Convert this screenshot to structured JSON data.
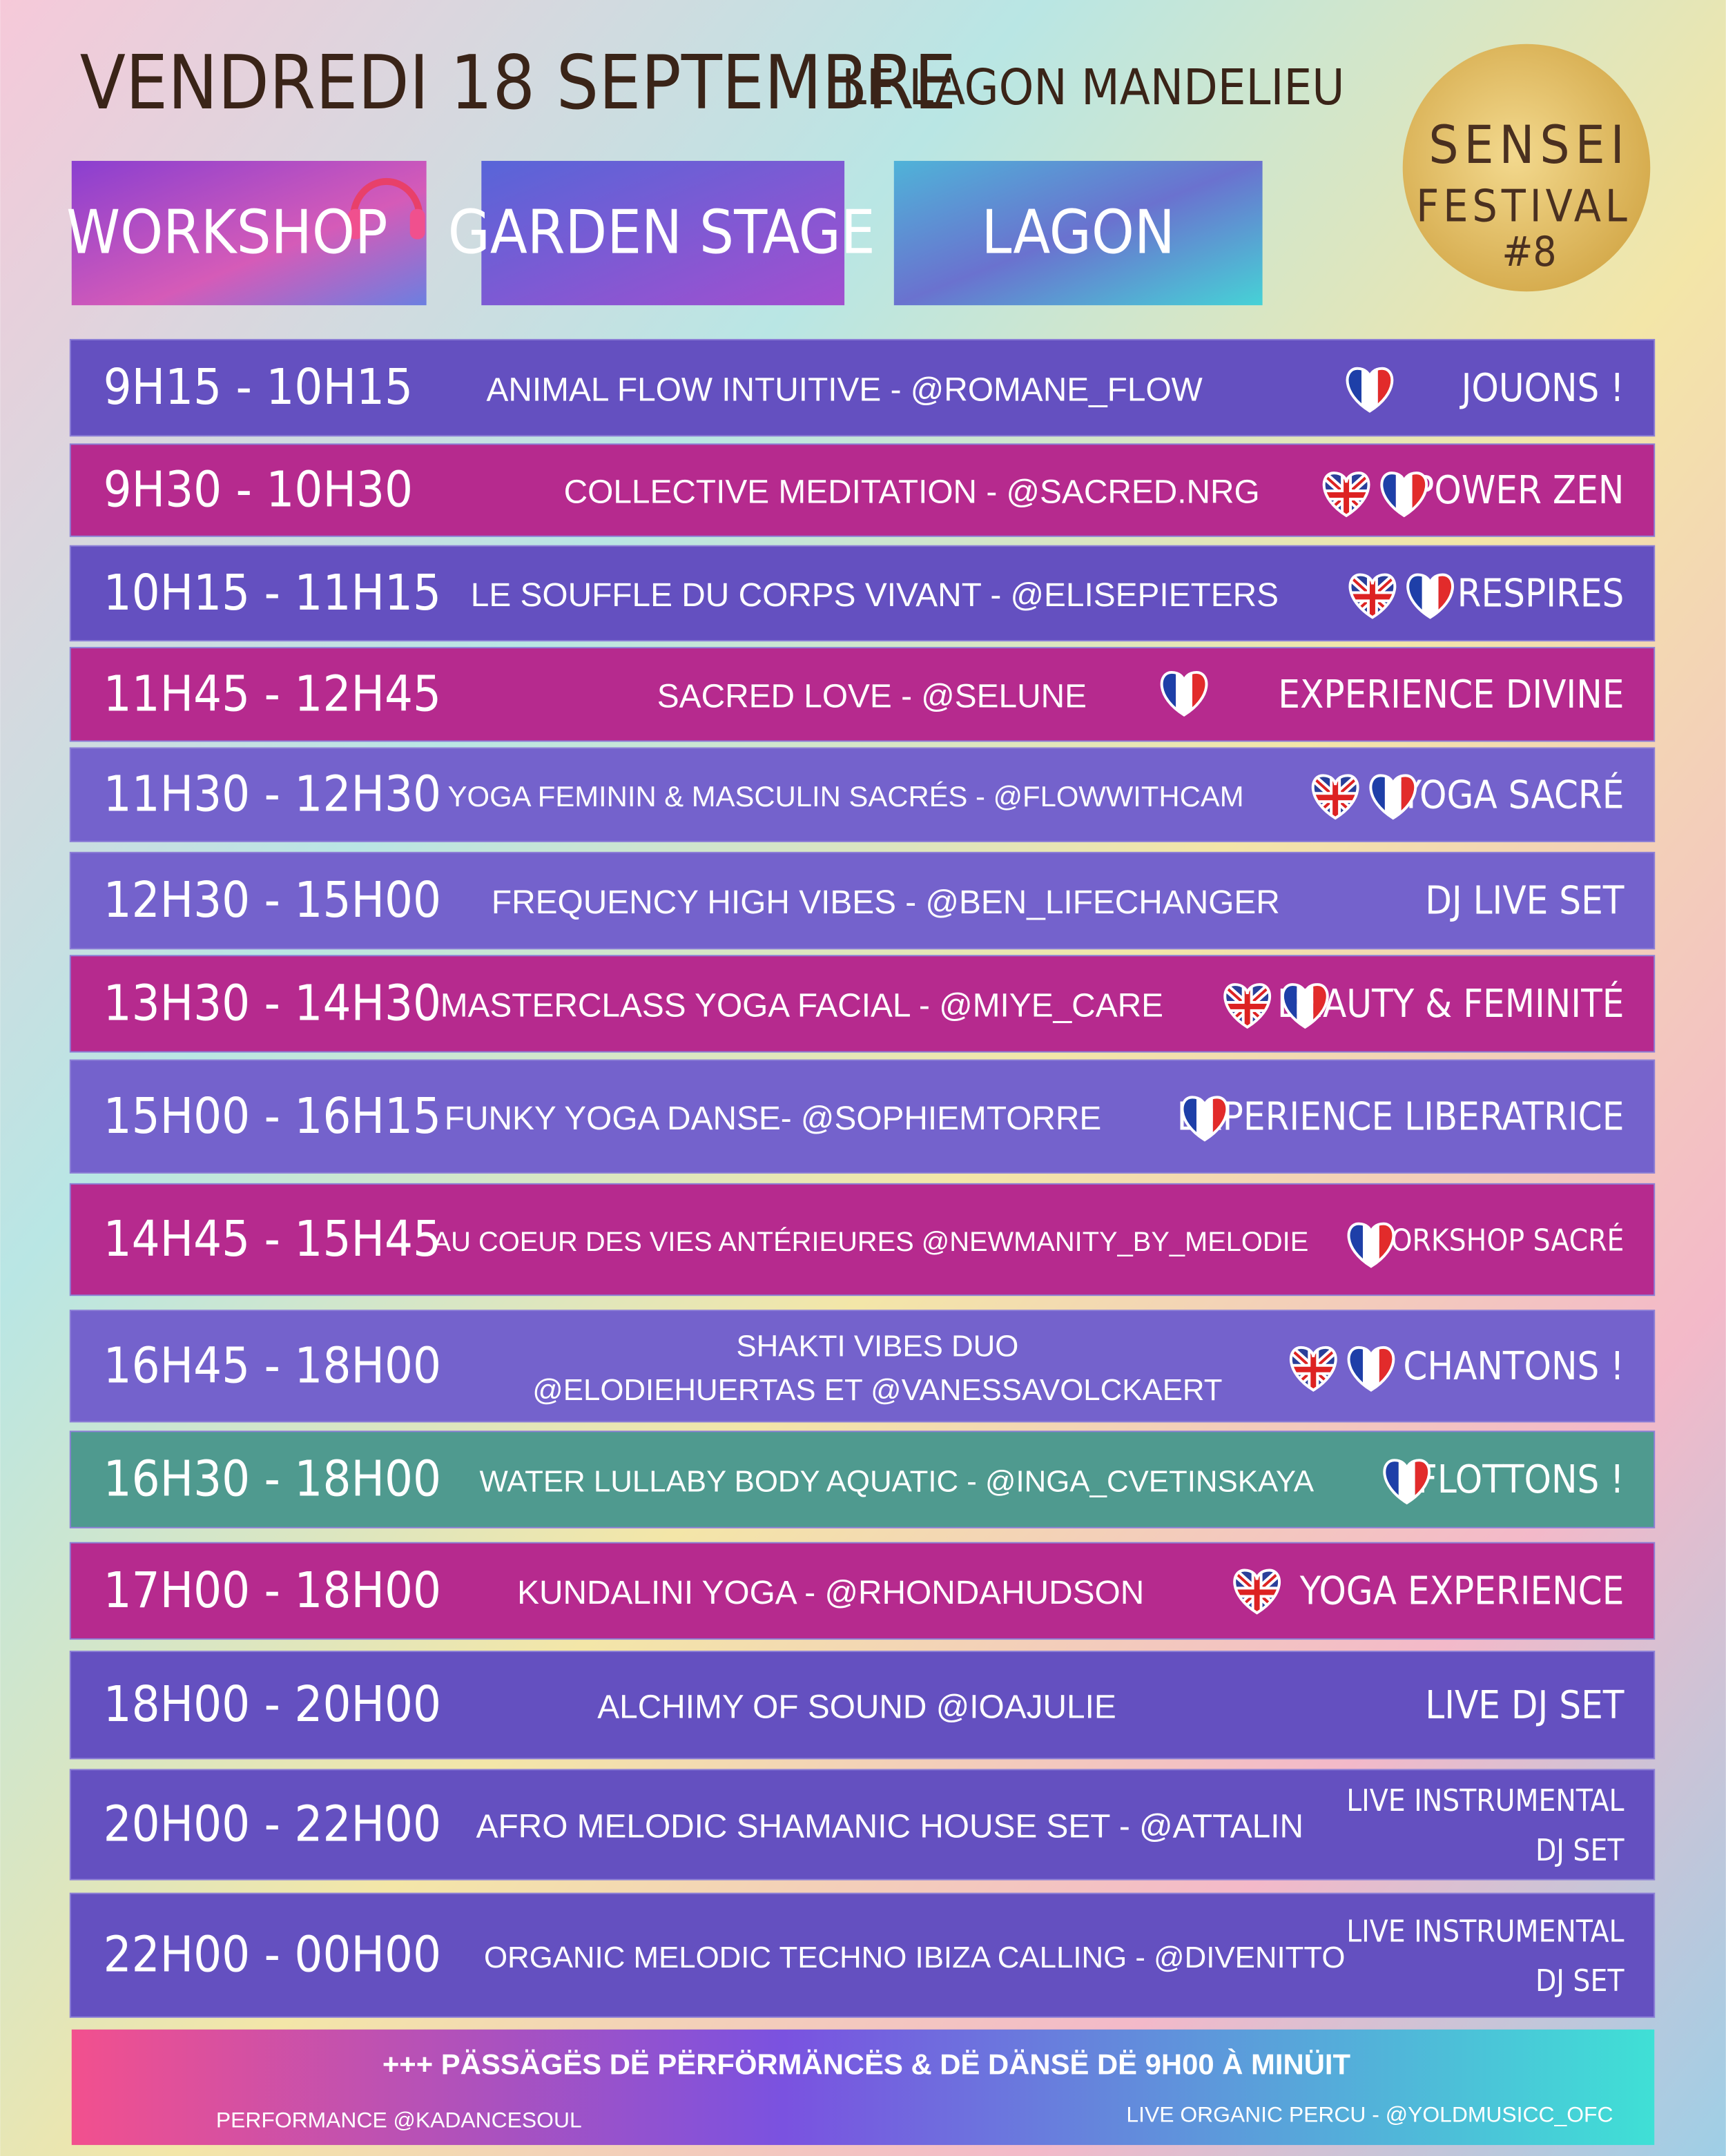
{
  "header": {
    "title": "VENDREDI 18 SEPTEMBRE",
    "venue": "LE LAGON MANDELIEU",
    "festival": {
      "name": "SENSEI",
      "subtitle": "FESTIVAL",
      "edition": "#8"
    },
    "stages": [
      "WORKSHOP",
      "GARDEN STAGE",
      "LAGON"
    ]
  },
  "schedule": [
    {
      "time": "9H15 - 10H15",
      "title": [
        "ANIMAL FLOW INTUITIVE - @ROMANE_FLOW"
      ],
      "category": [
        "JOUONS !"
      ]
    },
    {
      "time": "9H30 - 10H30",
      "title": [
        "COLLECTIVE MEDITATION -  @SACRED.NRG"
      ],
      "category": [
        "POWER ZEN"
      ]
    },
    {
      "time": "10H15 - 11H15",
      "title": [
        "LE SOUFFLE DU CORPS VIVANT - @ELISEPIETERS"
      ],
      "category": [
        "RESPIRES"
      ]
    },
    {
      "time": "11H45 - 12H45",
      "title": [
        "SACRED LOVE  - @SELUNE"
      ],
      "category": [
        "EXPERIENCE DIVINE"
      ]
    },
    {
      "time": "11H30 - 12H30",
      "title": [
        "YOGA FEMININ & MASCULIN SACRÉS - @FLOWWITHCAM"
      ],
      "category": [
        "YOGA SACRÉ"
      ]
    },
    {
      "time": "12H30 - 15H00",
      "title": [
        "FREQUENCY HIGH VIBES - @BEN_LIFECHANGER"
      ],
      "category": [
        "DJ LIVE SET"
      ]
    },
    {
      "time": "13H30 - 14H30",
      "title": [
        "MASTERCLASS  YOGA FACIAL - @MIYE_CARE"
      ],
      "category": [
        "BEAUTY & FEMINITÉ"
      ]
    },
    {
      "time": "15H00 - 16H15",
      "title": [
        "FUNKY YOGA DANSE- @SOPHIEMTORRE"
      ],
      "category": [
        "EXPERIENCE LIBERATRICE"
      ]
    },
    {
      "time": "14H45 - 15H45",
      "title": [
        "AU COEUR DES VIES ANTÉRIEURES @NEWMANITY_BY_MELODIE"
      ],
      "category": [
        "WORKSHOP SACRÉ"
      ]
    },
    {
      "time": "16H45 - 18H00",
      "title": [
        "SHAKTI VIBES DUO",
        "@ELODIEHUERTAS ET  @VANESSAVOLCKAERT"
      ],
      "category": [
        "CHANTONS !"
      ]
    },
    {
      "time": "16H30 - 18H00",
      "title": [
        "WATER LULLABY BODY AQUATIC - @INGA_CVETINSKAYA"
      ],
      "category": [
        "FLOTTONS !"
      ]
    },
    {
      "time": "17H00 - 18H00",
      "title": [
        "KUNDALINI YOGA - @RHONDAHUDSON"
      ],
      "category": [
        "YOGA EXPERIENCE"
      ]
    },
    {
      "time": "18H00 - 20H00",
      "title": [
        "ALCHIMY OF SOUND @IOAJULIE"
      ],
      "category": [
        "LIVE DJ SET"
      ]
    },
    {
      "time": "20H00 - 22H00",
      "title": [
        "AFRO MELODIC SHAMANIC HOUSE SET - @ATTALIN"
      ],
      "category": [
        "LIVE INSTRUMENTAL",
        "DJ SET"
      ]
    },
    {
      "time": "22H00 - 00H00",
      "title": [
        "ORGANIC MELODIC TECHNO IBIZA CALLING - @DIVENITTO"
      ],
      "category": [
        "LIVE INSTRUMENTAL",
        "DJ SET"
      ]
    }
  ],
  "footer": {
    "headline": "+++  PÄSSÄGËS DË PËRFÖRMÄNCËS & DË DÄNSË  DË 9H00 À MINÜIT",
    "left": "PERFORMANCE @KADANCESOUL",
    "right": "LIVE ORGANIC PERCU - @YOLDMUSICC_OFC"
  }
}
